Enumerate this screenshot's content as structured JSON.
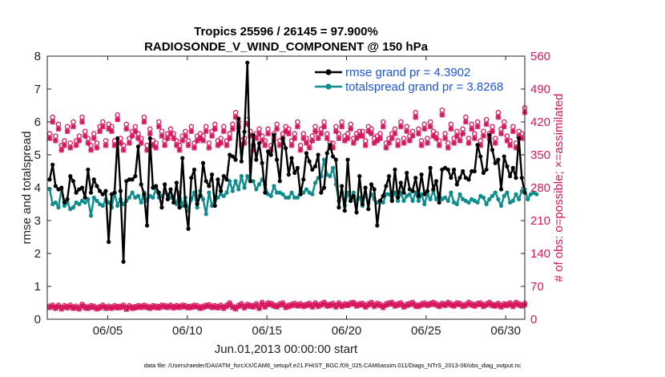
{
  "chart_data": {
    "type": "line",
    "title_line1": "Tropics 25596 / 26145 = 97.900%",
    "title_line2": "RADIOSONDE_V_WIND_COMPONENT @ 150 hPa",
    "xlabel": "Jun.01,2013 00:00:00 start",
    "ylabel_left": "rmse and totalspread",
    "ylabel_right": "# of obs: o=possible; ×=assimilated",
    "footnote": "data file: /Users/raeder/DAI/ATM_forcXX/CAM6_setup/f.e21.FHIST_BGC.f09_025.CAM6assim.011/Diags_NTrS_2013-06/obs_diag_output.nc",
    "xlim": [
      1.2,
      31.2
    ],
    "ylim_left": [
      0,
      8
    ],
    "ylim_right": [
      0,
      560
    ],
    "x_ticks": [
      5,
      10,
      15,
      20,
      25,
      30
    ],
    "x_tick_labels": [
      "06/05",
      "06/10",
      "06/15",
      "06/20",
      "06/25",
      "06/30"
    ],
    "y_ticks_left": [
      "0",
      "1",
      "2",
      "3",
      "4",
      "5",
      "6",
      "7",
      "8"
    ],
    "y_ticks_right": [
      "0",
      "70",
      "140",
      "210",
      "280",
      "350",
      "420",
      "490",
      "560"
    ],
    "colors": {
      "rmse": "#000000",
      "spread": "#0e8c8c",
      "obs": "#d6165e",
      "legend_text": "#1a55d8"
    },
    "series": [
      {
        "name": "rmse grand pr = 4.3902",
        "values": [
          4.25,
          4.7,
          4.05,
          3.95,
          4.0,
          3.55,
          3.65,
          4.35,
          4.2,
          3.85,
          3.95,
          4.0,
          3.7,
          4.55,
          3.85,
          4.25,
          4.05,
          3.9,
          3.8,
          3.9,
          2.35,
          3.8,
          3.85,
          5.5,
          3.9,
          1.75,
          4.2,
          4.25,
          4.25,
          4.35,
          5.25,
          4.1,
          3.8,
          2.85,
          5.5,
          4.0,
          4.05,
          3.85,
          3.4,
          4.1,
          3.65,
          3.95,
          3.55,
          4.15,
          3.4,
          4.9,
          3.45,
          2.75,
          4.3,
          4.55,
          3.5,
          3.75,
          4.75,
          4.2,
          4.05,
          4.4,
          3.45,
          4.25,
          3.9,
          4.35,
          4.25,
          5.0,
          4.95,
          4.85,
          6.1,
          4.8,
          5.7,
          7.8,
          4.2,
          5.6,
          4.85,
          5.35,
          4.75,
          3.85,
          5.1,
          5.0,
          5.6,
          4.85,
          4.2,
          5.5,
          5.2,
          4.4,
          4.9,
          4.45,
          4.6,
          3.8,
          4.25,
          5.05,
          4.8,
          4.55,
          4.65,
          5.0,
          3.85,
          4.0,
          5.05,
          5.3,
          4.95,
          4.85,
          3.4,
          4.05,
          3.3,
          4.85,
          3.6,
          3.75,
          3.25,
          4.35,
          3.5,
          4.0,
          3.35,
          4.1,
          3.95,
          2.85,
          3.6,
          3.75,
          4.05,
          4.35,
          3.6,
          4.55,
          3.7,
          4.15,
          3.85,
          4.45,
          3.95,
          3.9,
          4.3,
          3.75,
          4.4,
          3.8,
          3.9,
          4.6,
          3.95,
          4.2,
          3.55,
          4.55,
          4.6,
          4.55,
          4.3,
          4.55,
          4.1,
          4.3,
          4.5,
          4.3,
          4.25,
          4.5,
          4.5,
          5.3,
          4.95,
          4.45,
          4.55,
          5.6,
          5.15,
          4.75,
          4.85,
          3.95,
          4.95,
          4.65,
          4.35,
          4.6,
          4.3,
          5.5,
          4.3,
          3.85
        ]
      },
      {
        "name": "totalspread grand pr = 3.8268",
        "values": [
          3.95,
          3.5,
          3.55,
          3.4,
          3.95,
          3.45,
          3.55,
          3.35,
          3.4,
          3.55,
          3.5,
          3.6,
          3.55,
          3.65,
          3.15,
          3.7,
          3.6,
          3.5,
          3.45,
          3.65,
          3.55,
          3.4,
          3.85,
          3.45,
          3.65,
          3.5,
          3.6,
          3.7,
          3.85,
          3.7,
          3.75,
          3.55,
          3.85,
          3.6,
          3.75,
          3.7,
          3.95,
          3.7,
          3.75,
          3.85,
          3.8,
          3.7,
          3.75,
          3.5,
          3.85,
          3.45,
          3.7,
          3.3,
          3.65,
          3.85,
          3.4,
          3.9,
          3.65,
          3.2,
          3.85,
          3.45,
          3.6,
          3.7,
          3.8,
          3.75,
          3.85,
          4.2,
          3.9,
          4.2,
          3.95,
          4.35,
          4.0,
          4.35,
          4.2,
          4.2,
          3.95,
          4.1,
          4.25,
          4.1,
          3.8,
          3.75,
          4.05,
          3.85,
          3.85,
          3.8,
          3.7,
          3.7,
          3.85,
          3.7,
          3.7,
          3.9,
          3.85,
          3.95,
          3.85,
          3.8,
          4.15,
          4.3,
          4.35,
          4.85,
          4.4,
          4.35,
          4.6,
          4.1,
          3.6,
          3.85,
          3.45,
          3.85,
          3.6,
          3.85,
          3.55,
          3.7,
          3.45,
          3.8,
          3.55,
          3.8,
          3.65,
          3.55,
          3.6,
          3.55,
          3.8,
          3.8,
          3.65,
          3.85,
          3.6,
          3.85,
          3.6,
          3.75,
          3.8,
          3.6,
          3.85,
          3.6,
          3.8,
          3.5,
          3.8,
          3.65,
          3.9,
          3.65,
          3.8,
          3.65,
          3.7,
          3.6,
          3.85,
          3.55,
          3.5,
          3.8,
          3.65,
          3.6,
          3.55,
          3.65,
          3.6,
          3.55,
          3.75,
          3.7,
          3.5,
          3.65,
          3.75,
          3.85,
          3.65,
          3.45,
          3.75,
          3.85,
          3.55,
          3.6,
          3.8,
          3.65,
          3.9,
          3.95,
          3.65,
          3.8,
          3.85,
          3.8
        ]
      }
    ],
    "obs_high_possible": [
      395,
      430,
      390,
      415,
      370,
      380,
      410,
      375,
      420,
      380,
      390,
      430,
      400,
      385,
      370,
      395,
      375,
      410,
      420,
      380,
      415,
      410,
      380,
      435,
      385,
      370,
      415,
      385,
      400,
      410,
      395,
      385,
      430,
      370,
      405,
      380,
      375,
      420,
      400,
      380,
      395,
      405,
      395,
      380,
      370,
      390,
      400,
      380,
      410,
      375,
      390,
      395,
      390,
      410,
      375,
      400,
      415,
      380,
      385,
      410,
      380,
      395,
      415,
      440,
      420,
      380,
      385,
      425,
      400,
      370,
      395,
      405,
      390,
      380,
      405,
      370,
      395,
      415,
      380,
      395,
      410,
      405,
      380,
      395,
      420,
      370,
      395,
      385,
      375,
      390,
      410,
      395,
      405,
      420,
      395,
      375,
      375,
      410,
      395,
      420,
      390,
      395,
      415,
      385,
      395,
      400,
      400,
      380,
      410,
      405,
      385,
      390,
      395,
      420,
      375,
      385,
      395,
      405,
      380,
      420,
      385,
      410,
      390,
      400,
      440,
      405,
      380,
      415,
      385,
      420,
      400,
      395,
      380,
      445,
      395,
      375,
      415,
      385,
      400,
      390,
      405,
      430,
      385,
      415,
      395,
      420,
      380,
      400,
      425,
      395,
      410,
      385,
      440,
      405,
      420,
      390,
      380,
      410,
      375,
      400,
      395,
      450
    ],
    "obs_high_assimilated": [
      385,
      420,
      380,
      405,
      360,
      370,
      400,
      365,
      410,
      370,
      380,
      420,
      390,
      375,
      360,
      385,
      365,
      400,
      410,
      370,
      405,
      400,
      370,
      425,
      375,
      360,
      405,
      375,
      390,
      400,
      385,
      375,
      420,
      360,
      395,
      370,
      365,
      410,
      390,
      370,
      385,
      395,
      385,
      370,
      360,
      380,
      390,
      370,
      400,
      365,
      380,
      385,
      380,
      400,
      365,
      390,
      405,
      370,
      375,
      400,
      370,
      385,
      405,
      430,
      410,
      370,
      375,
      415,
      390,
      360,
      385,
      395,
      380,
      370,
      395,
      360,
      385,
      405,
      370,
      385,
      400,
      395,
      370,
      385,
      410,
      360,
      385,
      375,
      365,
      380,
      400,
      385,
      395,
      410,
      385,
      365,
      365,
      400,
      385,
      410,
      380,
      385,
      405,
      375,
      385,
      390,
      390,
      370,
      400,
      395,
      375,
      380,
      385,
      410,
      365,
      375,
      385,
      395,
      370,
      410,
      375,
      400,
      380,
      390,
      430,
      395,
      370,
      405,
      375,
      410,
      390,
      385,
      370,
      435,
      385,
      365,
      405,
      375,
      390,
      380,
      395,
      420,
      375,
      405,
      385,
      410,
      370,
      390,
      415,
      385,
      400,
      375,
      430,
      395,
      410,
      380,
      370,
      400,
      365,
      390,
      385,
      440
    ],
    "obs_low_possible": [
      28,
      30,
      26,
      30,
      25,
      29,
      27,
      30,
      26,
      28,
      25,
      32,
      27,
      26,
      29,
      28,
      25,
      27,
      30,
      26,
      28,
      26,
      29,
      27,
      28,
      30,
      24,
      29,
      26,
      27,
      29,
      28,
      30,
      28,
      26,
      29,
      28,
      27,
      30,
      29,
      28,
      30,
      27,
      29,
      28,
      30,
      29,
      27,
      28,
      30,
      29,
      26,
      28,
      30,
      31,
      28,
      29,
      27,
      30,
      26,
      30,
      35,
      28,
      25,
      30,
      33,
      27,
      32,
      30,
      29,
      33,
      26,
      36,
      29,
      35,
      34,
      31,
      29,
      33,
      35,
      28,
      30,
      32,
      34,
      31,
      33,
      30,
      32,
      34,
      29,
      35,
      30,
      33,
      36,
      31,
      32,
      34,
      29,
      35,
      30,
      33,
      32,
      35,
      36,
      31,
      33,
      34,
      29,
      33,
      36,
      30,
      34,
      32,
      28,
      33,
      35,
      36,
      31,
      33,
      35,
      29,
      32,
      34,
      36,
      31,
      30,
      33,
      35,
      32,
      34,
      36,
      33,
      30,
      34,
      32,
      36,
      33,
      31,
      35,
      34,
      30,
      32,
      36,
      33,
      31,
      34,
      35,
      30,
      33,
      36,
      32,
      31,
      34,
      29,
      33,
      32,
      35,
      30,
      36,
      33,
      31,
      34
    ],
    "obs_low_assimilated": [
      25,
      27,
      23,
      27,
      22,
      26,
      24,
      27,
      23,
      25,
      22,
      29,
      24,
      23,
      26,
      25,
      22,
      24,
      27,
      23,
      25,
      23,
      26,
      24,
      25,
      27,
      21,
      26,
      23,
      24,
      26,
      25,
      27,
      25,
      23,
      26,
      25,
      24,
      27,
      26,
      25,
      27,
      24,
      26,
      25,
      27,
      26,
      24,
      25,
      27,
      26,
      23,
      25,
      27,
      28,
      25,
      26,
      24,
      27,
      23,
      27,
      32,
      25,
      22,
      27,
      30,
      24,
      29,
      27,
      26,
      30,
      23,
      33,
      26,
      32,
      31,
      28,
      26,
      30,
      32,
      25,
      27,
      29,
      31,
      28,
      30,
      27,
      29,
      31,
      26,
      32,
      27,
      30,
      33,
      28,
      29,
      31,
      26,
      32,
      27,
      30,
      29,
      32,
      33,
      28,
      30,
      31,
      26,
      30,
      33,
      27,
      31,
      29,
      25,
      30,
      32,
      33,
      28,
      30,
      32,
      26,
      29,
      31,
      33,
      28,
      27,
      30,
      32,
      29,
      31,
      33,
      30,
      27,
      31,
      29,
      33,
      30,
      28,
      32,
      31,
      27,
      29,
      33,
      30,
      28,
      31,
      32,
      27,
      30,
      33,
      29,
      28,
      31,
      26,
      30,
      29,
      32,
      27,
      33,
      30,
      28,
      31
    ]
  }
}
